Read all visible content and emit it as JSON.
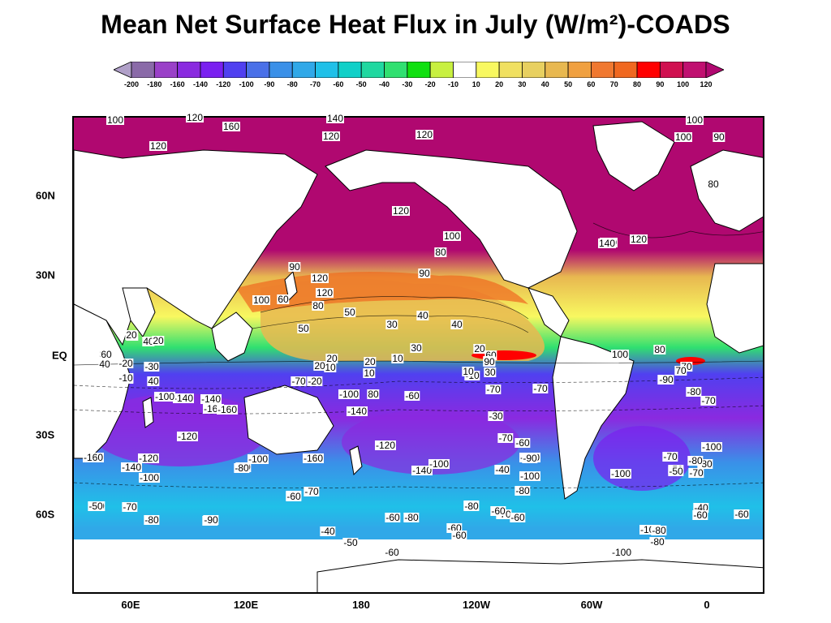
{
  "title": "Mean Net Surface Heat Flux in July (W/m²)-COADS",
  "colorbar": {
    "labels": [
      "-200",
      "-180",
      "-160",
      "-140",
      "-120",
      "-100",
      "-90",
      "-80",
      "-70",
      "-60",
      "-50",
      "-40",
      "-30",
      "-20",
      "-10",
      "10",
      "20",
      "30",
      "40",
      "50",
      "60",
      "70",
      "80",
      "90",
      "100",
      "120"
    ],
    "colors": [
      "#b0a0c8",
      "#8a6aa8",
      "#9a40c8",
      "#8a2ae0",
      "#7a20f0",
      "#5040f0",
      "#4a70e8",
      "#3a90e8",
      "#30a8e8",
      "#20c0e8",
      "#10d0c8",
      "#20d8a0",
      "#30e070",
      "#10e010",
      "#c8f040",
      "#ffffff",
      "#f8f860",
      "#f0e060",
      "#e8d060",
      "#e8b850",
      "#f0a040",
      "#f07830",
      "#f06820",
      "#ff0000",
      "#d01050",
      "#c01070",
      "#b00870"
    ]
  },
  "map": {
    "lat_labels": [
      "60N",
      "30N",
      "EQ",
      "30S",
      "60S"
    ],
    "lon_labels": [
      "60E",
      "120E",
      "180",
      "120W",
      "60W",
      "0"
    ],
    "contour_labels": [
      "100",
      "120",
      "160",
      "120",
      "120",
      "120",
      "140",
      "100",
      "100",
      "90",
      "80",
      "120",
      "100",
      "140",
      "120",
      "90",
      "80",
      "120",
      "120",
      "100",
      "60",
      "90",
      "80",
      "50",
      "50",
      "40",
      "30",
      "40",
      "10",
      "40",
      "30",
      "20",
      "20",
      "10",
      "10",
      "20",
      "10",
      "30",
      "-10",
      "20",
      "-20",
      "-10",
      "-70",
      "-100",
      "80",
      "-60",
      "-140",
      "-70",
      "-70",
      "-90",
      "-80",
      "-70",
      "-100",
      "-140",
      "-120",
      "-160",
      "-160",
      "-120",
      "-140",
      "-100",
      "-80",
      "-100",
      "-60",
      "-70",
      "-160",
      "-120",
      "-140",
      "-100",
      "-120",
      "-80",
      "-70",
      "-60",
      "-90",
      "-100",
      "-40",
      "-80",
      "-100",
      "-100",
      "-70",
      "-80",
      "-100",
      "-50",
      "-80",
      "-60",
      "-70",
      "-90",
      "-60",
      "-80",
      "-80",
      "-50",
      "-40",
      "-50",
      "-60",
      "-80",
      "-70",
      "-60",
      "-60",
      "-60",
      "-100",
      "-80",
      "-60",
      "-50",
      "-40",
      "-60",
      "20",
      "40",
      "30",
      "60",
      "-10",
      "-20",
      "-30",
      "10",
      "40",
      "-100",
      "140",
      "-140",
      "-160",
      "-120",
      "-90",
      "-80",
      "20",
      "-50",
      "-90",
      "70",
      "80",
      "60",
      "40",
      "100",
      "70",
      "90",
      "-30",
      "-80",
      "-60",
      "-70",
      "-50"
    ]
  }
}
